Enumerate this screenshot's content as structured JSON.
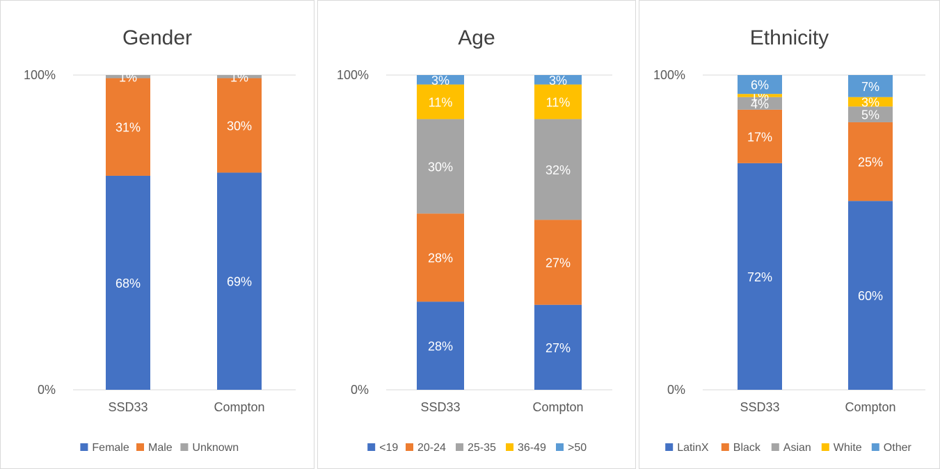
{
  "chart_data": [
    {
      "type": "bar",
      "stacked": true,
      "title": "Gender",
      "categories": [
        "SSD33",
        "Compton"
      ],
      "ylim": [
        0,
        100
      ],
      "ytick_labels": [
        "0%",
        "100%"
      ],
      "legend_position": "bottom",
      "grid": false,
      "series": [
        {
          "name": "Female",
          "color": "#4472c4",
          "values": [
            68,
            69
          ],
          "labels": [
            "68%",
            "69%"
          ]
        },
        {
          "name": "Male",
          "color": "#ed7d31",
          "values": [
            31,
            30
          ],
          "labels": [
            "31%",
            "30%"
          ]
        },
        {
          "name": "Unknown",
          "color": "#a5a5a5",
          "values": [
            1,
            1
          ],
          "labels": [
            "1%",
            "1%"
          ]
        }
      ]
    },
    {
      "type": "bar",
      "stacked": true,
      "title": "Age",
      "categories": [
        "SSD33",
        "Compton"
      ],
      "ylim": [
        0,
        100
      ],
      "ytick_labels": [
        "0%",
        "100%"
      ],
      "legend_position": "bottom",
      "grid": false,
      "series": [
        {
          "name": "<19",
          "color": "#4472c4",
          "values": [
            28,
            27
          ],
          "labels": [
            "28%",
            "27%"
          ]
        },
        {
          "name": "20-24",
          "color": "#ed7d31",
          "values": [
            28,
            27
          ],
          "labels": [
            "28%",
            "27%"
          ]
        },
        {
          "name": "25-35",
          "color": "#a5a5a5",
          "values": [
            30,
            32
          ],
          "labels": [
            "30%",
            "32%"
          ]
        },
        {
          "name": "36-49",
          "color": "#ffc000",
          "values": [
            11,
            11
          ],
          "labels": [
            "11%",
            "11%"
          ]
        },
        {
          "name": ">50",
          "color": "#5b9bd5",
          "values": [
            3,
            3
          ],
          "labels": [
            "3%",
            "3%"
          ]
        }
      ]
    },
    {
      "type": "bar",
      "stacked": true,
      "title": "Ethnicity",
      "categories": [
        "SSD33",
        "Compton"
      ],
      "ylim": [
        0,
        100
      ],
      "ytick_labels": [
        "0%",
        "100%"
      ],
      "legend_position": "bottom",
      "grid": false,
      "series": [
        {
          "name": "LatinX",
          "color": "#4472c4",
          "values": [
            72,
            60
          ],
          "labels": [
            "72%",
            "60%"
          ]
        },
        {
          "name": "Black",
          "color": "#ed7d31",
          "values": [
            17,
            25
          ],
          "labels": [
            "17%",
            "25%"
          ]
        },
        {
          "name": "Asian",
          "color": "#a5a5a5",
          "values": [
            4,
            5
          ],
          "labels": [
            "4%",
            "5%"
          ]
        },
        {
          "name": "White",
          "color": "#ffc000",
          "values": [
            1,
            3
          ],
          "labels": [
            "1%",
            "3%"
          ]
        },
        {
          "name": "Other",
          "color": "#5b9bd5",
          "values": [
            6,
            7
          ],
          "labels": [
            "6%",
            "7%"
          ]
        }
      ]
    }
  ]
}
